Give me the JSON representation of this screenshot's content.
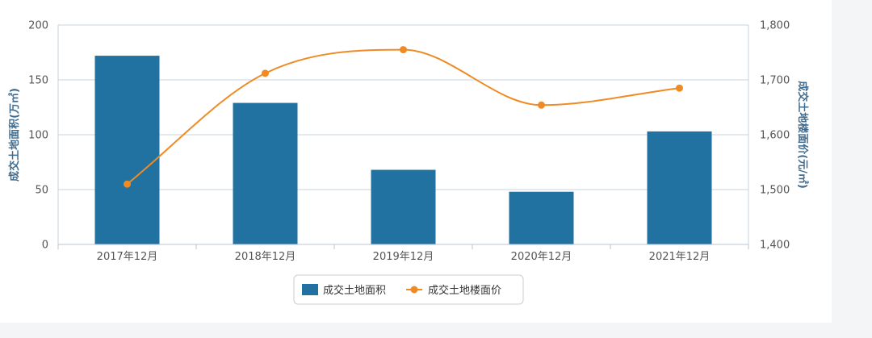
{
  "chart_data": {
    "type": "bar+line",
    "categories": [
      "2017年12月",
      "2018年12月",
      "2019年12月",
      "2020年12月",
      "2021年12月"
    ],
    "series": [
      {
        "name": "成交土地面积",
        "type": "bar",
        "axis": "left",
        "color": "#2272a1",
        "values": [
          172,
          129,
          68,
          48,
          103
        ]
      },
      {
        "name": "成交土地楼面价",
        "type": "line",
        "axis": "right",
        "color": "#ef8a24",
        "values": [
          1510,
          1712,
          1755,
          1654,
          1685
        ]
      }
    ],
    "left_axis": {
      "label": "成交土地面积(万㎡)",
      "ylim": [
        0,
        200
      ],
      "ticks": [
        0,
        50,
        100,
        150,
        200
      ],
      "tick_labels": [
        "0",
        "50",
        "100",
        "150",
        "200"
      ]
    },
    "right_axis": {
      "label": "成交土地楼面价(元/㎡)",
      "ylim": [
        1400,
        1800
      ],
      "ticks": [
        1400,
        1500,
        1600,
        1700,
        1800
      ],
      "tick_labels": [
        "1,400",
        "1,500",
        "1,600",
        "1,700",
        "1,800"
      ]
    },
    "grid": true,
    "legend": "bottom-center"
  }
}
